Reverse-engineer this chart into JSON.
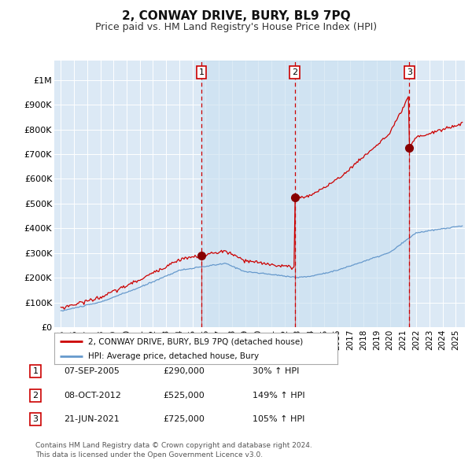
{
  "title": "2, CONWAY DRIVE, BURY, BL9 7PQ",
  "subtitle": "Price paid vs. HM Land Registry's House Price Index (HPI)",
  "title_fontsize": 11,
  "subtitle_fontsize": 9,
  "background_color": "#ffffff",
  "plot_bg_color": "#dce9f5",
  "grid_color": "#ffffff",
  "ylabel_ticks": [
    "£0",
    "£100K",
    "£200K",
    "£300K",
    "£400K",
    "£500K",
    "£600K",
    "£700K",
    "£800K",
    "£900K",
    "£1M"
  ],
  "ytick_values": [
    0,
    100000,
    200000,
    300000,
    400000,
    500000,
    600000,
    700000,
    800000,
    900000,
    1000000
  ],
  "ylim": [
    0,
    1080000
  ],
  "xlim_start": 1994.5,
  "xlim_end": 2025.7,
  "transactions": [
    {
      "label": "1",
      "date_num": 2005.69,
      "price": 290000,
      "date_str": "07-SEP-2005",
      "pct": "30%",
      "dir": "↑"
    },
    {
      "label": "2",
      "date_num": 2012.77,
      "price": 525000,
      "date_str": "08-OCT-2012",
      "pct": "149%",
      "dir": "↑"
    },
    {
      "label": "3",
      "date_num": 2021.47,
      "price": 725000,
      "date_str": "21-JUN-2021",
      "pct": "105%",
      "dir": "↑"
    }
  ],
  "legend_line1": "2, CONWAY DRIVE, BURY, BL9 7PQ (detached house)",
  "legend_line2": "HPI: Average price, detached house, Bury",
  "footer1": "Contains HM Land Registry data © Crown copyright and database right 2024.",
  "footer2": "This data is licensed under the Open Government Licence v3.0.",
  "red_line_color": "#cc0000",
  "blue_line_color": "#6699cc",
  "marker_color": "#880000",
  "shaded_color": "#c8dff0",
  "xtick_years": [
    1995,
    1996,
    1997,
    1998,
    1999,
    2000,
    2001,
    2002,
    2003,
    2004,
    2005,
    2006,
    2007,
    2008,
    2009,
    2010,
    2011,
    2012,
    2013,
    2014,
    2015,
    2016,
    2017,
    2018,
    2019,
    2020,
    2021,
    2022,
    2023,
    2024,
    2025
  ]
}
